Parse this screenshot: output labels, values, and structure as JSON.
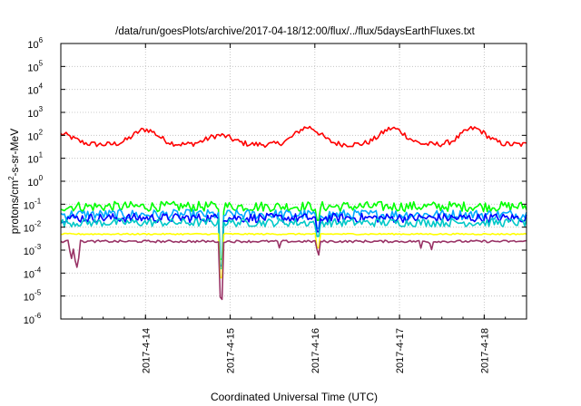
{
  "chart_data": {
    "type": "line",
    "title": "/data/run/goesPlots/archive/2017-04-18/12:00/flux/../flux/5daysEarthFluxes.txt",
    "xlabel": "Coordinated Universal Time (UTC)",
    "ylabel_main": "protons/cm",
    "ylabel_sup": "2",
    "ylabel_rest": "-s-sr-MeV",
    "y_scale": "log",
    "ylim_exp": [
      -6,
      6
    ],
    "y_tick_exponents": [
      -6,
      -5,
      -4,
      -3,
      -2,
      -1,
      0,
      1,
      2,
      3,
      4,
      5,
      6
    ],
    "y_tick_base": "10",
    "xlim_days": [
      "2017-04-13T00:00",
      "2017-04-18T12:00"
    ],
    "x_ticks": [
      {
        "date": "2017-04-14",
        "label": "2017-4-14"
      },
      {
        "date": "2017-04-15",
        "label": "2017-4-15"
      },
      {
        "date": "2017-04-16",
        "label": "2017-4-16"
      },
      {
        "date": "2017-04-17",
        "label": "2017-4-17"
      },
      {
        "date": "2017-04-18",
        "label": "2017-4-18"
      }
    ],
    "grid": true,
    "legend": "none",
    "series": [
      {
        "color": "#ff0000",
        "base_exp": 1.6,
        "noise": 0.12,
        "peaks": [
          {
            "date": "2017-04-13T00:00",
            "exp": 2.05
          },
          {
            "date": "2017-04-14T00:00",
            "exp": 2.25
          },
          {
            "date": "2017-04-14T21:00",
            "exp": 2.0
          },
          {
            "date": "2017-04-15T22:00",
            "exp": 2.35
          },
          {
            "date": "2017-04-16T22:00",
            "exp": 2.3
          },
          {
            "date": "2017-04-17T21:00",
            "exp": 2.3
          }
        ]
      },
      {
        "color": "#00ff00",
        "base_exp": -1.1,
        "noise": 0.22
      },
      {
        "color": "#00aaff",
        "base_exp": -1.45,
        "noise": 0.22
      },
      {
        "color": "#0000ff",
        "base_exp": -1.6,
        "noise": 0.2
      },
      {
        "color": "#00c8c8",
        "base_exp": -1.8,
        "noise": 0.18
      },
      {
        "color": "#ffff00",
        "base_exp": -2.3,
        "noise": 0.03
      },
      {
        "color": "#993366",
        "base_exp": -2.62,
        "noise": 0.05,
        "dips": [
          {
            "date": "2017-04-13T03:00",
            "exp": -3.4
          },
          {
            "date": "2017-04-13T04:30",
            "exp": -3.8
          },
          {
            "date": "2017-04-14T21:30",
            "exp": -5.3
          },
          {
            "date": "2017-04-15T14:00",
            "exp": -2.95
          },
          {
            "date": "2017-04-16T01:00",
            "exp": -3.3
          },
          {
            "date": "2017-04-17T06:00",
            "exp": -2.95
          },
          {
            "date": "2017-04-17T09:00",
            "exp": -3.05
          }
        ]
      }
    ]
  }
}
